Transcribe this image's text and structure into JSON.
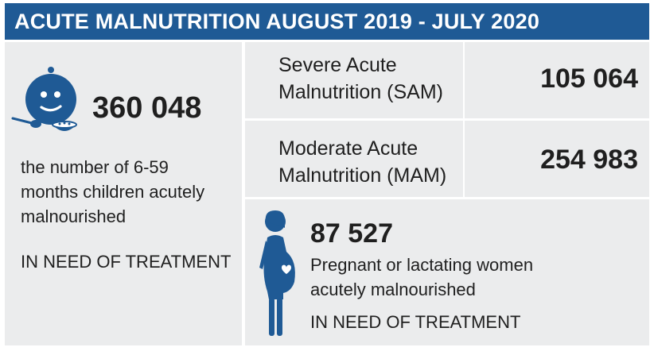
{
  "header": {
    "title": "ACUTE MALNUTRITION AUGUST 2019 - JULY 2020"
  },
  "children": {
    "icon": "child-eating-icon",
    "value": "360 048",
    "description_line1": "the number of 6-59",
    "description_line2": "months children acutely",
    "description_line3": "malnourished",
    "need": "IN NEED OF TREATMENT"
  },
  "sam": {
    "label_line1": "Severe Acute",
    "label_line2": "Malnutrition (SAM)",
    "value": "105 064"
  },
  "mam": {
    "label_line1": "Moderate Acute",
    "label_line2": "Malnutrition (MAM)",
    "value": "254 983"
  },
  "women": {
    "icon": "pregnant-woman-icon",
    "value": "87 527",
    "description_line1": "Pregnant or lactating women",
    "description_line2": "acutely malnourished",
    "need": "IN NEED OF TREATMENT"
  },
  "colors": {
    "brand_blue": "#1f5a95",
    "panel_gray": "#ebeced",
    "text": "#1f1f1f"
  }
}
